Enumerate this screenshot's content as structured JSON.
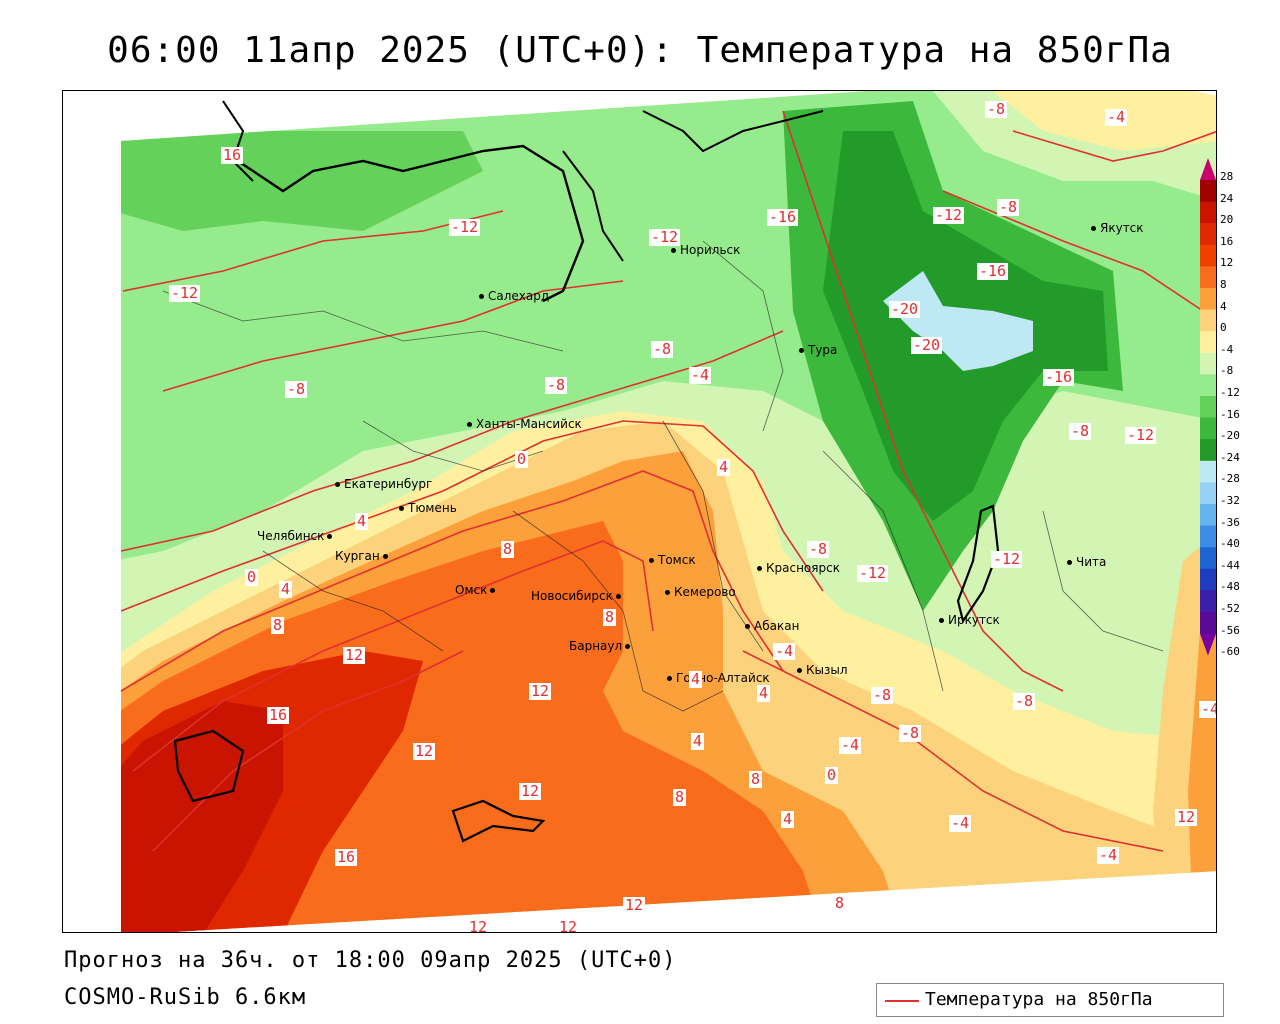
{
  "title": "06:00 11апр 2025 (UTC+0): Температура на 850гПа",
  "forecast_text": "Прогноз на 36ч. от 18:00 09апр 2025 (UTC+0)",
  "model_text": "COSMO-RuSib 6.6км",
  "legend": {
    "label": "Температура на 850гПа",
    "line_color": "#e03030"
  },
  "colorbar": {
    "ticks": [
      "28",
      "24",
      "20",
      "16",
      "12",
      "8",
      "4",
      "0",
      "-4",
      "-8",
      "-12",
      "-16",
      "-20",
      "-24",
      "-28",
      "-32",
      "-36",
      "-40",
      "-44",
      "-48",
      "-52",
      "-56",
      "-60"
    ],
    "colors": [
      "#c8006e",
      "#a00000",
      "#c81400",
      "#e02800",
      "#f04000",
      "#f86c1c",
      "#fca03c",
      "#fcd27c",
      "#fff0a0",
      "#d2f5b4",
      "#96eb8c",
      "#64d25a",
      "#3cb93c",
      "#229b2a",
      "#bfe8f5",
      "#96d2f5",
      "#64b4f0",
      "#3c8ce6",
      "#1e64d2",
      "#1e3cbe",
      "#3c1eaa",
      "#5a0a96",
      "#7800a0"
    ]
  },
  "cities": [
    {
      "name": "Салехард"
    },
    {
      "name": "Норильск"
    },
    {
      "name": "Якутск"
    },
    {
      "name": "Тура"
    },
    {
      "name": "Ханты-Мансийск"
    },
    {
      "name": "Екатеринбург"
    },
    {
      "name": "Тюмень"
    },
    {
      "name": "Челябинск"
    },
    {
      "name": "Курган"
    },
    {
      "name": "Омск"
    },
    {
      "name": "Новосибирск"
    },
    {
      "name": "Томск"
    },
    {
      "name": "Кемерово"
    },
    {
      "name": "Барнаул"
    },
    {
      "name": "Горно-Алтайск"
    },
    {
      "name": "Абакан"
    },
    {
      "name": "Кызыл"
    },
    {
      "name": "Красноярск"
    },
    {
      "name": "Иркутск"
    },
    {
      "name": "Чита"
    }
  ],
  "isotherm_labels": [
    "16",
    "-12",
    "-12",
    "-12",
    "-8",
    "-4",
    "-8",
    "-16",
    "-12",
    "-8",
    "-16",
    "-20",
    "-20",
    "-16",
    "-8",
    "-12",
    "-8",
    "-8",
    "-4",
    "0",
    "4",
    "4",
    "0",
    "4",
    "8",
    "8",
    "12",
    "16",
    "12",
    "12",
    "8",
    "4",
    "8",
    "8",
    "4",
    "-8",
    "-12",
    "-12",
    "-8",
    "-4",
    "-4",
    "-8",
    "-8",
    "-4",
    "0",
    "4",
    "8",
    "-4",
    "12",
    "-4",
    "12",
    "16",
    "12",
    "12",
    "12",
    "4"
  ]
}
